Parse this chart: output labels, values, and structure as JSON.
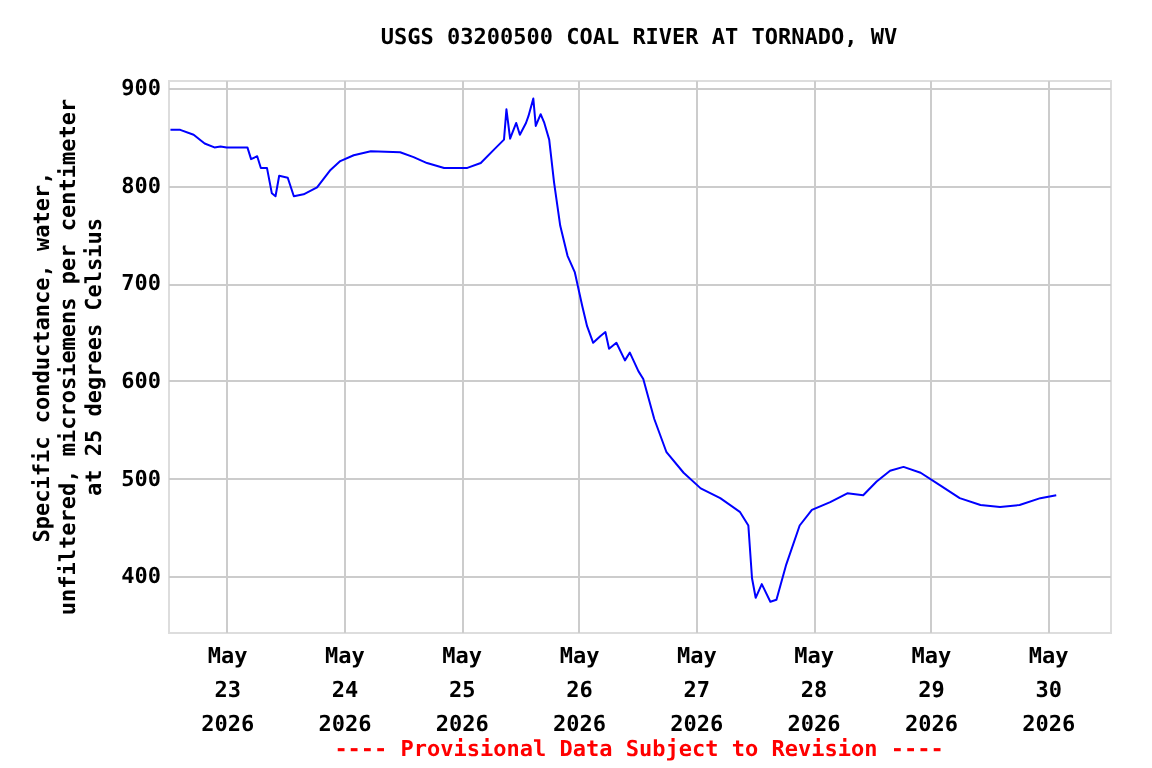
{
  "chart_data": {
    "type": "line",
    "title": "USGS 03200500 COAL RIVER AT TORNADO, WV",
    "ylabel": "Specific conductance, water,\nunfiltered, microsiemens per centimeter\nat 25 degrees Celsius",
    "annotations": [
      "---- Provisional Data Subject to Revision ----"
    ],
    "x": [
      "2026-05-22T12:30",
      "2026-05-22T14:30",
      "2026-05-22T17:15",
      "2026-05-22T19:30",
      "2026-05-22T21:30",
      "2026-05-22T22:45",
      "2026-05-23T00:00",
      "2026-05-23T04:15",
      "2026-05-23T05:00",
      "2026-05-23T06:15",
      "2026-05-23T07:00",
      "2026-05-23T08:15",
      "2026-05-23T09:15",
      "2026-05-23T10:00",
      "2026-05-23T10:45",
      "2026-05-23T12:30",
      "2026-05-23T13:45",
      "2026-05-23T15:45",
      "2026-05-23T18:30",
      "2026-05-23T21:15",
      "2026-05-23T23:15",
      "2026-05-24T02:00",
      "2026-05-24T05:30",
      "2026-05-24T11:30",
      "2026-05-24T14:15",
      "2026-05-24T17:00",
      "2026-05-24T20:30",
      "2026-05-25T01:15",
      "2026-05-25T04:00",
      "2026-05-25T06:45",
      "2026-05-25T08:45",
      "2026-05-25T09:15",
      "2026-05-25T10:00",
      "2026-05-25T11:15",
      "2026-05-25T12:00",
      "2026-05-25T13:15",
      "2026-05-25T13:45",
      "2026-05-25T14:45",
      "2026-05-25T15:15",
      "2026-05-25T16:15",
      "2026-05-25T17:00",
      "2026-05-25T18:00",
      "2026-05-25T19:00",
      "2026-05-25T20:15",
      "2026-05-25T21:45",
      "2026-05-25T23:15",
      "2026-05-26T00:45",
      "2026-05-26T01:45",
      "2026-05-26T03:00",
      "2026-05-26T04:30",
      "2026-05-26T05:30",
      "2026-05-26T06:15",
      "2026-05-26T07:45",
      "2026-05-26T09:30",
      "2026-05-26T10:30",
      "2026-05-26T12:15",
      "2026-05-26T13:15",
      "2026-05-26T15:30",
      "2026-05-26T18:00",
      "2026-05-26T21:30",
      "2026-05-27T01:00",
      "2026-05-27T05:00",
      "2026-05-27T09:00",
      "2026-05-27T10:45",
      "2026-05-27T11:30",
      "2026-05-27T12:15",
      "2026-05-27T13:30",
      "2026-05-27T15:15",
      "2026-05-27T16:30",
      "2026-05-27T18:30",
      "2026-05-27T21:15",
      "2026-05-27T23:45",
      "2026-05-28T03:30",
      "2026-05-28T07:00",
      "2026-05-28T10:15",
      "2026-05-28T13:00",
      "2026-05-28T15:45",
      "2026-05-28T18:30",
      "2026-05-28T22:00",
      "2026-05-29T02:00",
      "2026-05-29T06:00",
      "2026-05-29T10:15",
      "2026-05-29T14:15",
      "2026-05-29T18:15",
      "2026-05-29T22:30",
      "2026-05-30T01:45"
    ],
    "series": [
      {
        "color": "#0000ff",
        "values": [
          857,
          857,
          852,
          843,
          839,
          840,
          839,
          839,
          827,
          830,
          818,
          818,
          792,
          789,
          810,
          808,
          789,
          791,
          798,
          816,
          825,
          831,
          835,
          834,
          829,
          823,
          818,
          818,
          823,
          837,
          847,
          878,
          848,
          864,
          852,
          864,
          871,
          889,
          861,
          873,
          864,
          847,
          803,
          759,
          728,
          711,
          677,
          656,
          639,
          646,
          650,
          633,
          639,
          621,
          629,
          610,
          602,
          561,
          527,
          506,
          490,
          480,
          466,
          452,
          398,
          378,
          392,
          374,
          376,
          412,
          452,
          468,
          476,
          485,
          483,
          497,
          508,
          512,
          506,
          493,
          480,
          473,
          471,
          473,
          480,
          483
        ]
      }
    ],
    "xlim": [
      "2026-05-22T12:00",
      "2026-05-30T12:45"
    ],
    "xticks": [
      {
        "value": "2026-05-23",
        "label": "May\n23\n2026"
      },
      {
        "value": "2026-05-24",
        "label": "May\n24\n2026"
      },
      {
        "value": "2026-05-25",
        "label": "May\n25\n2026"
      },
      {
        "value": "2026-05-26",
        "label": "May\n26\n2026"
      },
      {
        "value": "2026-05-27",
        "label": "May\n27\n2026"
      },
      {
        "value": "2026-05-28",
        "label": "May\n28\n2026"
      },
      {
        "value": "2026-05-29",
        "label": "May\n29\n2026"
      },
      {
        "value": "2026-05-30",
        "label": "May\n30\n2026"
      }
    ],
    "ylim": [
      343,
      908
    ],
    "yticks": [
      400,
      500,
      600,
      700,
      800,
      900
    ],
    "grid": true,
    "marker": "none",
    "line_style": "solid"
  }
}
